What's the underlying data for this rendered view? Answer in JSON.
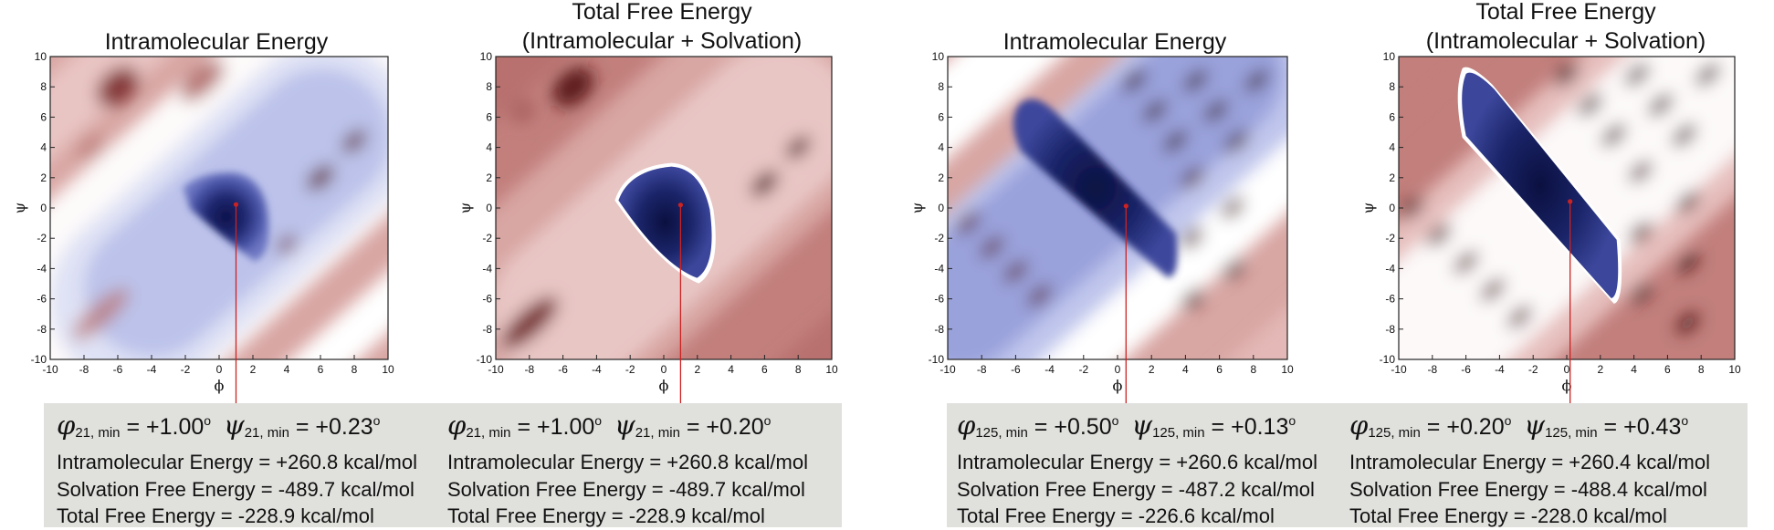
{
  "chart_data": [
    {
      "type": "heatmap",
      "title": "Intramolecular Energy",
      "xlabel": "ϕ",
      "ylabel": "ψ",
      "xlim": [
        -10,
        10
      ],
      "ylim": [
        -10,
        10
      ],
      "xticks": [
        "-10",
        "-8",
        "-6",
        "-4",
        "-2",
        "0",
        "2",
        "4",
        "6",
        "8",
        "10"
      ],
      "yticks": [
        "10",
        "8",
        "6",
        "4",
        "2",
        "0",
        "-2",
        "-4",
        "-6",
        "-8",
        "-10"
      ],
      "minimum": {
        "phi": 1.0,
        "psi": 0.23
      },
      "colormap": "blue-white-red (low to high energy)"
    },
    {
      "type": "heatmap",
      "title": [
        "Total Free Energy",
        "(Intramolecular + Solvation)"
      ],
      "xlabel": "ϕ",
      "ylabel": "ψ",
      "xlim": [
        -10,
        10
      ],
      "ylim": [
        -10,
        10
      ],
      "xticks": [
        "-10",
        "-8",
        "-6",
        "-4",
        "-2",
        "0",
        "2",
        "4",
        "6",
        "8",
        "10"
      ],
      "yticks": [
        "10",
        "8",
        "6",
        "4",
        "2",
        "0",
        "-2",
        "-4",
        "-6",
        "-8",
        "-10"
      ],
      "minimum": {
        "phi": 1.0,
        "psi": 0.2
      },
      "colormap": "blue-white-red (low to high energy)"
    },
    {
      "type": "heatmap",
      "title": "Intramolecular Energy",
      "xlabel": "ϕ",
      "ylabel": "ψ",
      "xlim": [
        -10,
        10
      ],
      "ylim": [
        -10,
        10
      ],
      "xticks": [
        "-10",
        "-8",
        "-6",
        "-4",
        "-2",
        "0",
        "2",
        "4",
        "6",
        "8",
        "10"
      ],
      "yticks": [
        "10",
        "8",
        "6",
        "4",
        "2",
        "0",
        "-2",
        "-4",
        "-6",
        "-8",
        "-10"
      ],
      "minimum": {
        "phi": 0.5,
        "psi": 0.13
      },
      "colormap": "blue-white-red (low to high energy)"
    },
    {
      "type": "heatmap",
      "title": [
        "Total Free Energy",
        "(Intramolecular + Solvation)"
      ],
      "xlabel": "ϕ",
      "ylabel": "ψ",
      "xlim": [
        -10,
        10
      ],
      "ylim": [
        -10,
        10
      ],
      "xticks": [
        "-10",
        "-8",
        "-6",
        "-4",
        "-2",
        "0",
        "2",
        "4",
        "6",
        "8",
        "10"
      ],
      "yticks": [
        "10",
        "8",
        "6",
        "4",
        "2",
        "0",
        "-2",
        "-4",
        "-6",
        "-8",
        "-10"
      ],
      "minimum": {
        "phi": 0.2,
        "psi": 0.43
      },
      "colormap": "blue-white-red (low to high energy)"
    }
  ],
  "info": [
    {
      "phi_sym": "φ",
      "phi_sub": "21, min",
      "phi_val": " = +1.00",
      "deg": "o",
      "psi_sym": "ψ",
      "psi_sub": "21, min",
      "psi_val": " = +0.23",
      "intra": "Intramolecular Energy = +260.8 kcal/mol",
      "solv": "Solvation Free  Energy = -489.7 kcal/mol",
      "total": "Total Free Energy = -228.9 kcal/mol"
    },
    {
      "phi_sym": "φ",
      "phi_sub": "21, min",
      "phi_val": " = +1.00",
      "deg": "o",
      "psi_sym": "ψ",
      "psi_sub": "21, min",
      "psi_val": " = +0.20",
      "intra": "Intramolecular Energy = +260.8 kcal/mol",
      "solv": "Solvation Free  Energy = -489.7 kcal/mol",
      "total": "Total Free Energy = -228.9 kcal/mol"
    },
    {
      "phi_sym": "φ",
      "phi_sub": "125, min",
      "phi_val": " = +0.50",
      "deg": "o",
      "psi_sym": "ψ",
      "psi_sub": "125, min",
      "psi_val": " = +0.13",
      "intra": "Intramolecular Energy = +260.6 kcal/mol",
      "solv": "Solvation Free  Energy = -487.2 kcal/mol",
      "total": "Total Free Energy = -226.6 kcal/mol"
    },
    {
      "phi_sym": "φ",
      "phi_sub": "125, min",
      "phi_val": " = +0.20",
      "deg": "o",
      "psi_sym": "ψ",
      "psi_sub": "125, min",
      "psi_val": " = +0.43",
      "intra": "Intramolecular Energy = +260.4 kcal/mol",
      "solv": "Solvation Free  Energy = -488.4 kcal/mol",
      "total": "Total Free Energy = -228.0 kcal/mol"
    }
  ],
  "colors": {
    "high": "#5a1414",
    "mid_red": "#c98b88",
    "white": "#ffffff",
    "low_blue": "#a9b0e0",
    "deep_blue": "#10154e",
    "marker": "#cc2222",
    "infobox_bg": "#e0e0dd"
  }
}
